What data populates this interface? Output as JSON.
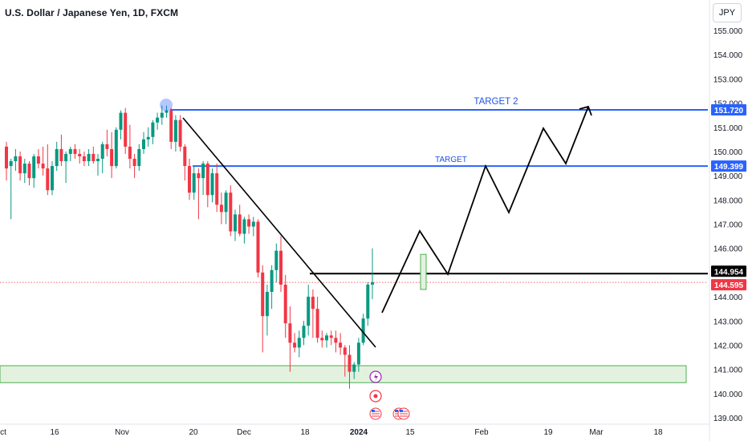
{
  "header": {
    "title": "U.S. Dollar / Japanese Yen, 1D, FXCM",
    "currency": "JPY"
  },
  "chart_data": {
    "type": "candlestick",
    "symbol": "USDJPY",
    "interval": "1D",
    "source": "FXCM",
    "ylim": [
      138.9,
      155.6
    ],
    "y_ticks": [
      "155.000",
      "154.000",
      "153.000",
      "152.000",
      "151.000",
      "150.000",
      "149.000",
      "148.000",
      "147.000",
      "146.000",
      "145.000",
      "144.000",
      "143.000",
      "142.000",
      "141.000",
      "140.000",
      "139.000"
    ],
    "x_ticks": [
      "ct",
      "16",
      "Nov",
      "20",
      "Dec",
      "18",
      "2024",
      "15",
      "Feb",
      "19",
      "Mar",
      "18"
    ],
    "price_labels": [
      {
        "value": 151.72,
        "text": "151.720",
        "color": "#2962ff"
      },
      {
        "value": 149.399,
        "text": "149.399",
        "color": "#2962ff"
      },
      {
        "value": 144.954,
        "text": "144.954",
        "color": "#000000"
      },
      {
        "value": 144.595,
        "text": "144.595",
        "color": "#f23645"
      }
    ],
    "annotations": [
      {
        "text": "TARGET 2",
        "level": 151.72
      },
      {
        "text": "TARGET",
        "level": 149.399
      }
    ],
    "candles": [
      [
        150.2,
        150.4,
        148.8,
        149.3
      ],
      [
        149.4,
        149.7,
        147.2,
        149.6
      ],
      [
        149.6,
        150.1,
        149.2,
        149.8
      ],
      [
        149.8,
        150.0,
        148.8,
        149.1
      ],
      [
        149.1,
        149.7,
        148.7,
        149.5
      ],
      [
        149.5,
        149.6,
        148.6,
        148.9
      ],
      [
        148.9,
        149.9,
        148.5,
        149.8
      ],
      [
        149.8,
        150.1,
        149.3,
        149.5
      ],
      [
        149.5,
        150.2,
        149.0,
        149.3
      ],
      [
        149.3,
        150.3,
        148.2,
        148.4
      ],
      [
        148.4,
        149.6,
        148.2,
        149.4
      ],
      [
        149.4,
        150.4,
        149.2,
        150.1
      ],
      [
        150.1,
        150.7,
        149.4,
        149.6
      ],
      [
        149.6,
        150.0,
        148.7,
        149.9
      ],
      [
        149.9,
        150.2,
        149.6,
        150.1
      ],
      [
        150.1,
        150.3,
        149.7,
        149.9
      ],
      [
        149.9,
        150.1,
        149.5,
        149.8
      ],
      [
        149.8,
        150.0,
        149.4,
        149.6
      ],
      [
        149.6,
        150.1,
        149.4,
        149.9
      ],
      [
        149.9,
        150.2,
        149.5,
        149.6
      ],
      [
        149.6,
        149.9,
        149.0,
        149.7
      ],
      [
        149.7,
        150.4,
        149.1,
        150.3
      ],
      [
        150.3,
        150.9,
        149.8,
        150.1
      ],
      [
        150.1,
        150.8,
        148.9,
        149.4
      ],
      [
        149.4,
        151.0,
        149.3,
        150.9
      ],
      [
        150.9,
        151.7,
        150.5,
        151.6
      ],
      [
        151.6,
        151.8,
        149.9,
        150.2
      ],
      [
        150.2,
        151.1,
        149.3,
        149.7
      ],
      [
        149.7,
        149.9,
        148.9,
        149.4
      ],
      [
        149.4,
        150.3,
        149.2,
        150.1
      ],
      [
        150.1,
        150.8,
        149.9,
        150.5
      ],
      [
        150.5,
        151.0,
        150.2,
        150.6
      ],
      [
        150.6,
        151.3,
        150.3,
        151.2
      ],
      [
        151.2,
        151.6,
        150.9,
        151.4
      ],
      [
        151.4,
        151.9,
        151.1,
        151.6
      ],
      [
        151.6,
        151.9,
        151.4,
        151.7
      ],
      [
        151.7,
        151.8,
        150.1,
        150.4
      ],
      [
        150.4,
        151.5,
        150.0,
        151.3
      ],
      [
        151.3,
        151.5,
        150.0,
        150.2
      ],
      [
        150.2,
        150.3,
        148.8,
        149.4
      ],
      [
        149.4,
        149.7,
        148.0,
        148.3
      ],
      [
        148.3,
        149.4,
        148.0,
        149.1
      ],
      [
        149.1,
        149.3,
        147.2,
        148.9
      ],
      [
        148.9,
        149.6,
        148.2,
        149.5
      ],
      [
        149.5,
        149.6,
        147.7,
        148.2
      ],
      [
        148.2,
        149.3,
        147.9,
        149.1
      ],
      [
        149.1,
        149.5,
        147.5,
        147.8
      ],
      [
        147.8,
        148.3,
        147.0,
        147.5
      ],
      [
        147.5,
        148.4,
        147.0,
        148.3
      ],
      [
        148.3,
        148.6,
        146.5,
        146.7
      ],
      [
        146.7,
        147.6,
        146.3,
        147.4
      ],
      [
        147.4,
        147.8,
        146.5,
        146.6
      ],
      [
        146.6,
        147.3,
        146.2,
        147.2
      ],
      [
        147.2,
        147.4,
        146.6,
        146.9
      ],
      [
        146.9,
        147.3,
        146.5,
        147.1
      ],
      [
        147.1,
        147.2,
        144.8,
        145.0
      ],
      [
        145.0,
        145.3,
        141.7,
        143.2
      ],
      [
        143.2,
        144.5,
        142.4,
        144.2
      ],
      [
        144.2,
        145.3,
        143.5,
        145.1
      ],
      [
        145.1,
        146.2,
        144.6,
        145.9
      ],
      [
        145.9,
        146.5,
        144.2,
        144.5
      ],
      [
        144.5,
        144.9,
        142.3,
        142.9
      ],
      [
        142.9,
        143.6,
        140.9,
        142.1
      ],
      [
        142.1,
        142.5,
        141.7,
        141.9
      ],
      [
        141.9,
        142.6,
        141.5,
        142.3
      ],
      [
        142.3,
        143.0,
        142.0,
        142.8
      ],
      [
        142.8,
        144.5,
        142.4,
        144.0
      ],
      [
        144.0,
        144.3,
        142.3,
        143.5
      ],
      [
        143.5,
        144.0,
        142.1,
        142.3
      ],
      [
        142.3,
        142.6,
        141.9,
        142.2
      ],
      [
        142.2,
        142.5,
        141.9,
        142.4
      ],
      [
        142.4,
        142.6,
        142.0,
        142.3
      ],
      [
        142.3,
        142.6,
        141.7,
        142.1
      ],
      [
        142.1,
        142.5,
        141.6,
        141.9
      ],
      [
        141.9,
        142.0,
        140.7,
        141.6
      ],
      [
        141.6,
        142.0,
        140.2,
        140.9
      ],
      [
        140.9,
        141.3,
        140.6,
        141.2
      ],
      [
        141.2,
        142.3,
        140.9,
        142.1
      ],
      [
        142.1,
        143.3,
        142.0,
        143.1
      ],
      [
        143.1,
        144.6,
        142.8,
        144.5
      ],
      [
        144.5,
        146.0,
        143.9,
        144.6
      ]
    ],
    "first_candle_x": 8,
    "candle_spacing": 5.7
  }
}
